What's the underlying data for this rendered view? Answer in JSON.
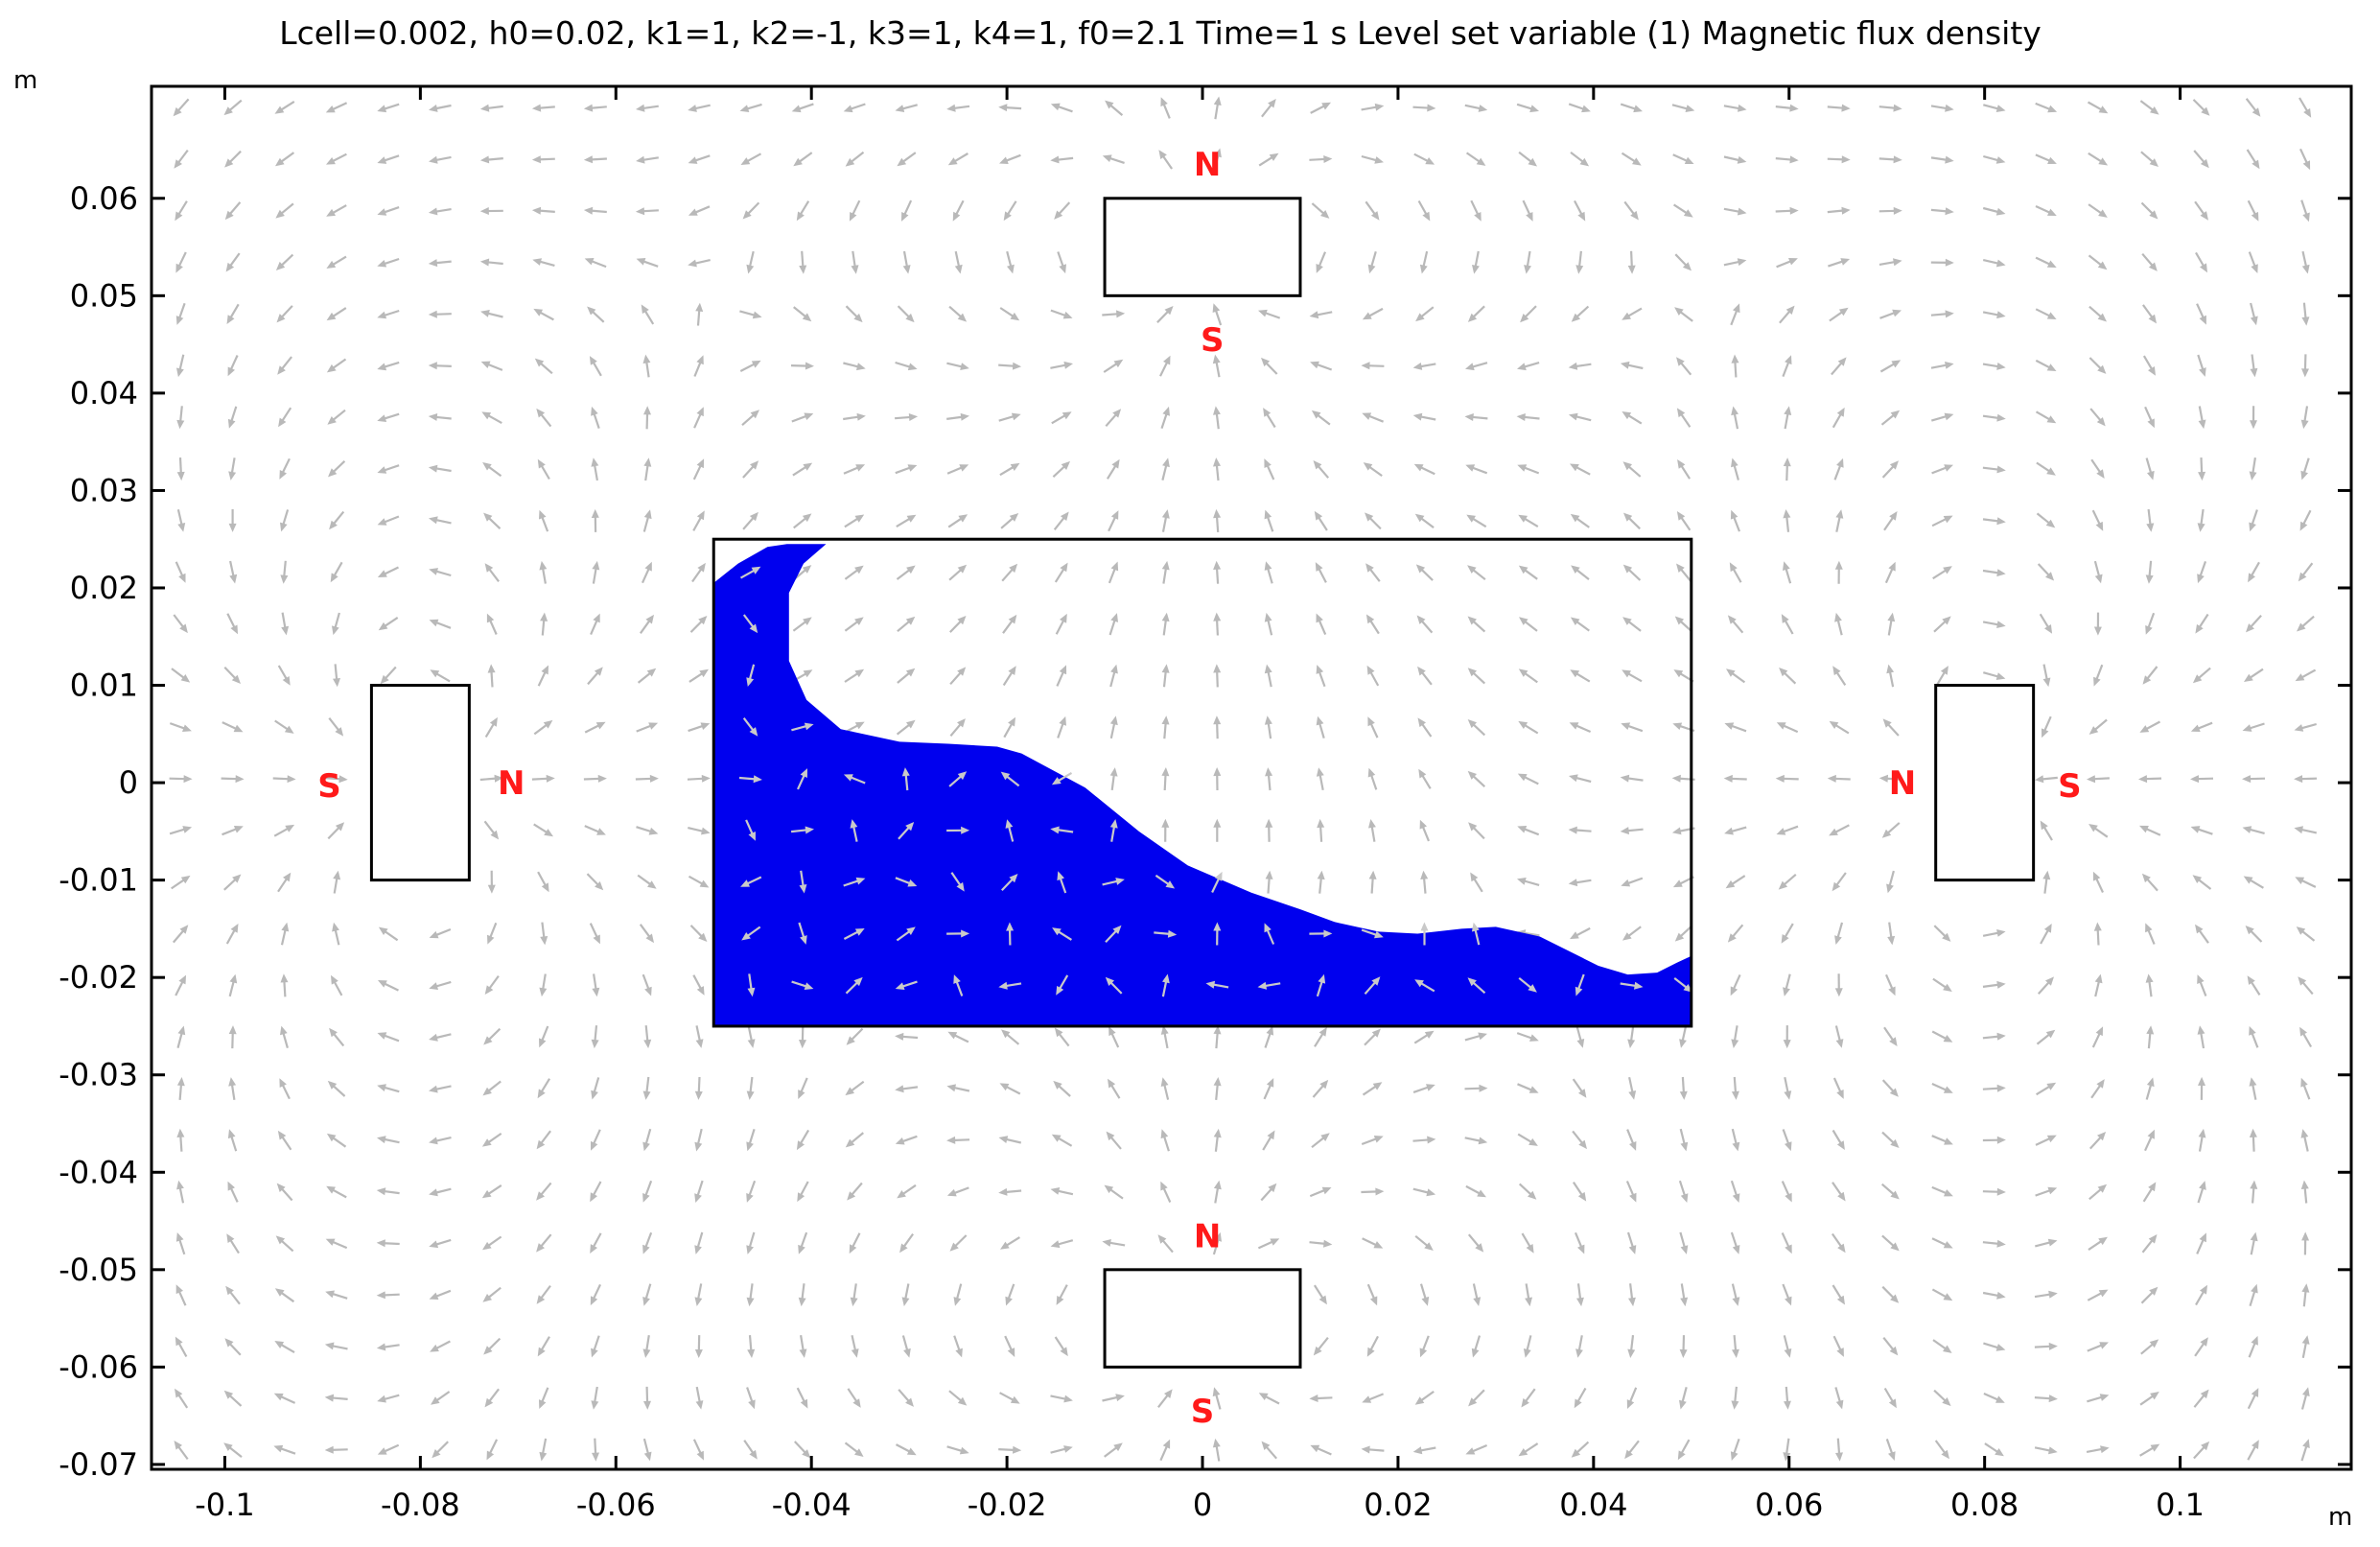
{
  "chart_data": {
    "type": "vector-field",
    "title": "Lcell=0.002, h0=0.02, k1=1, k2=-1, k3=1, k4=1, f0=2.1 Time=1 s  Level set variable (1)  Magnetic flux density",
    "xlabel": "m",
    "ylabel": "m",
    "xlim": [
      -0.1075,
      0.1175
    ],
    "ylim": [
      -0.0705,
      0.0715
    ],
    "x_ticks": [
      -0.1,
      -0.08,
      -0.06,
      -0.04,
      -0.02,
      0,
      0.02,
      0.04,
      0.06,
      0.08,
      0.1
    ],
    "x_tick_labels": [
      "-0.1",
      "-0.08",
      "-0.06",
      "-0.04",
      "-0.02",
      "0",
      "0.02",
      "0.04",
      "0.06",
      "0.08",
      "0.1"
    ],
    "y_ticks": [
      0.06,
      0.05,
      0.04,
      0.03,
      0.02,
      0.01,
      0,
      -0.01,
      -0.02,
      -0.03,
      -0.04,
      -0.05,
      -0.06,
      -0.07
    ],
    "y_tick_labels": [
      "0.06",
      "0.05",
      "0.04",
      "0.03",
      "0.02",
      "0.01",
      "0",
      "-0.01",
      "-0.02",
      "-0.03",
      "-0.04",
      "-0.05",
      "-0.06",
      "-0.07"
    ],
    "grid": false,
    "colors": {
      "liquid": "#0000ee",
      "arrows": "#b9b9b9",
      "pole_labels": "#ff1a1a",
      "outline": "#000000"
    },
    "container": {
      "x0": -0.05,
      "x1": 0.05,
      "y0": -0.025,
      "y1": 0.025
    },
    "magnets": [
      {
        "name": "top",
        "x0": -0.01,
        "x1": 0.01,
        "y0": 0.05,
        "y1": 0.06,
        "poles": [
          {
            "label": "N",
            "x": 0.0005,
            "y": 0.0635
          },
          {
            "label": "S",
            "x": 0.001,
            "y": 0.0455
          }
        ]
      },
      {
        "name": "bottom",
        "x0": -0.01,
        "x1": 0.01,
        "y0": -0.06,
        "y1": -0.05,
        "poles": [
          {
            "label": "N",
            "x": 0.0005,
            "y": -0.0465
          },
          {
            "label": "S",
            "x": 0.0,
            "y": -0.0645
          }
        ]
      },
      {
        "name": "left",
        "x0": -0.085,
        "x1": -0.075,
        "y0": -0.01,
        "y1": 0.01,
        "poles": [
          {
            "label": "S",
            "x": -0.0893,
            "y": -0.0003
          },
          {
            "label": "N",
            "x": -0.0707,
            "y": 0.0
          }
        ]
      },
      {
        "name": "right",
        "x0": 0.075,
        "x1": 0.085,
        "y0": -0.01,
        "y1": 0.01,
        "poles": [
          {
            "label": "N",
            "x": 0.0716,
            "y": 0.0
          },
          {
            "label": "S",
            "x": 0.0887,
            "y": -0.0003
          }
        ]
      }
    ],
    "liquid_boundary": [
      [
        -0.05,
        0.0205
      ],
      [
        -0.0475,
        0.0225
      ],
      [
        -0.0445,
        0.0242
      ],
      [
        -0.0425,
        0.0245
      ],
      [
        -0.0385,
        0.0245
      ],
      [
        -0.0408,
        0.0225
      ],
      [
        -0.0423,
        0.0195
      ],
      [
        -0.0423,
        0.0125
      ],
      [
        -0.0405,
        0.0085
      ],
      [
        -0.037,
        0.0055
      ],
      [
        -0.031,
        0.0042
      ],
      [
        -0.026,
        0.004
      ],
      [
        -0.021,
        0.0037
      ],
      [
        -0.0185,
        0.003
      ],
      [
        -0.012,
        -0.0005
      ],
      [
        -0.0065,
        -0.005
      ],
      [
        -0.0015,
        -0.0085
      ],
      [
        0.005,
        -0.0113
      ],
      [
        0.01,
        -0.013
      ],
      [
        0.0135,
        -0.0143
      ],
      [
        0.018,
        -0.0153
      ],
      [
        0.022,
        -0.0155
      ],
      [
        0.0265,
        -0.015
      ],
      [
        0.03,
        -0.0148
      ],
      [
        0.0345,
        -0.0158
      ],
      [
        0.0405,
        -0.0188
      ],
      [
        0.0435,
        -0.0197
      ],
      [
        0.0465,
        -0.0195
      ],
      [
        0.0485,
        -0.0185
      ],
      [
        0.05,
        -0.0178
      ],
      [
        0.05,
        -0.025
      ],
      [
        -0.05,
        -0.025
      ]
    ],
    "dipoles": [
      {
        "x": 0.0,
        "y": 0.055,
        "mx": 0,
        "my": 1
      },
      {
        "x": 0.0,
        "y": -0.055,
        "mx": 0,
        "my": 1
      },
      {
        "x": -0.08,
        "y": 0.0,
        "mx": 1,
        "my": 0
      },
      {
        "x": 0.08,
        "y": 0.0,
        "mx": -1,
        "my": 0
      }
    ]
  }
}
